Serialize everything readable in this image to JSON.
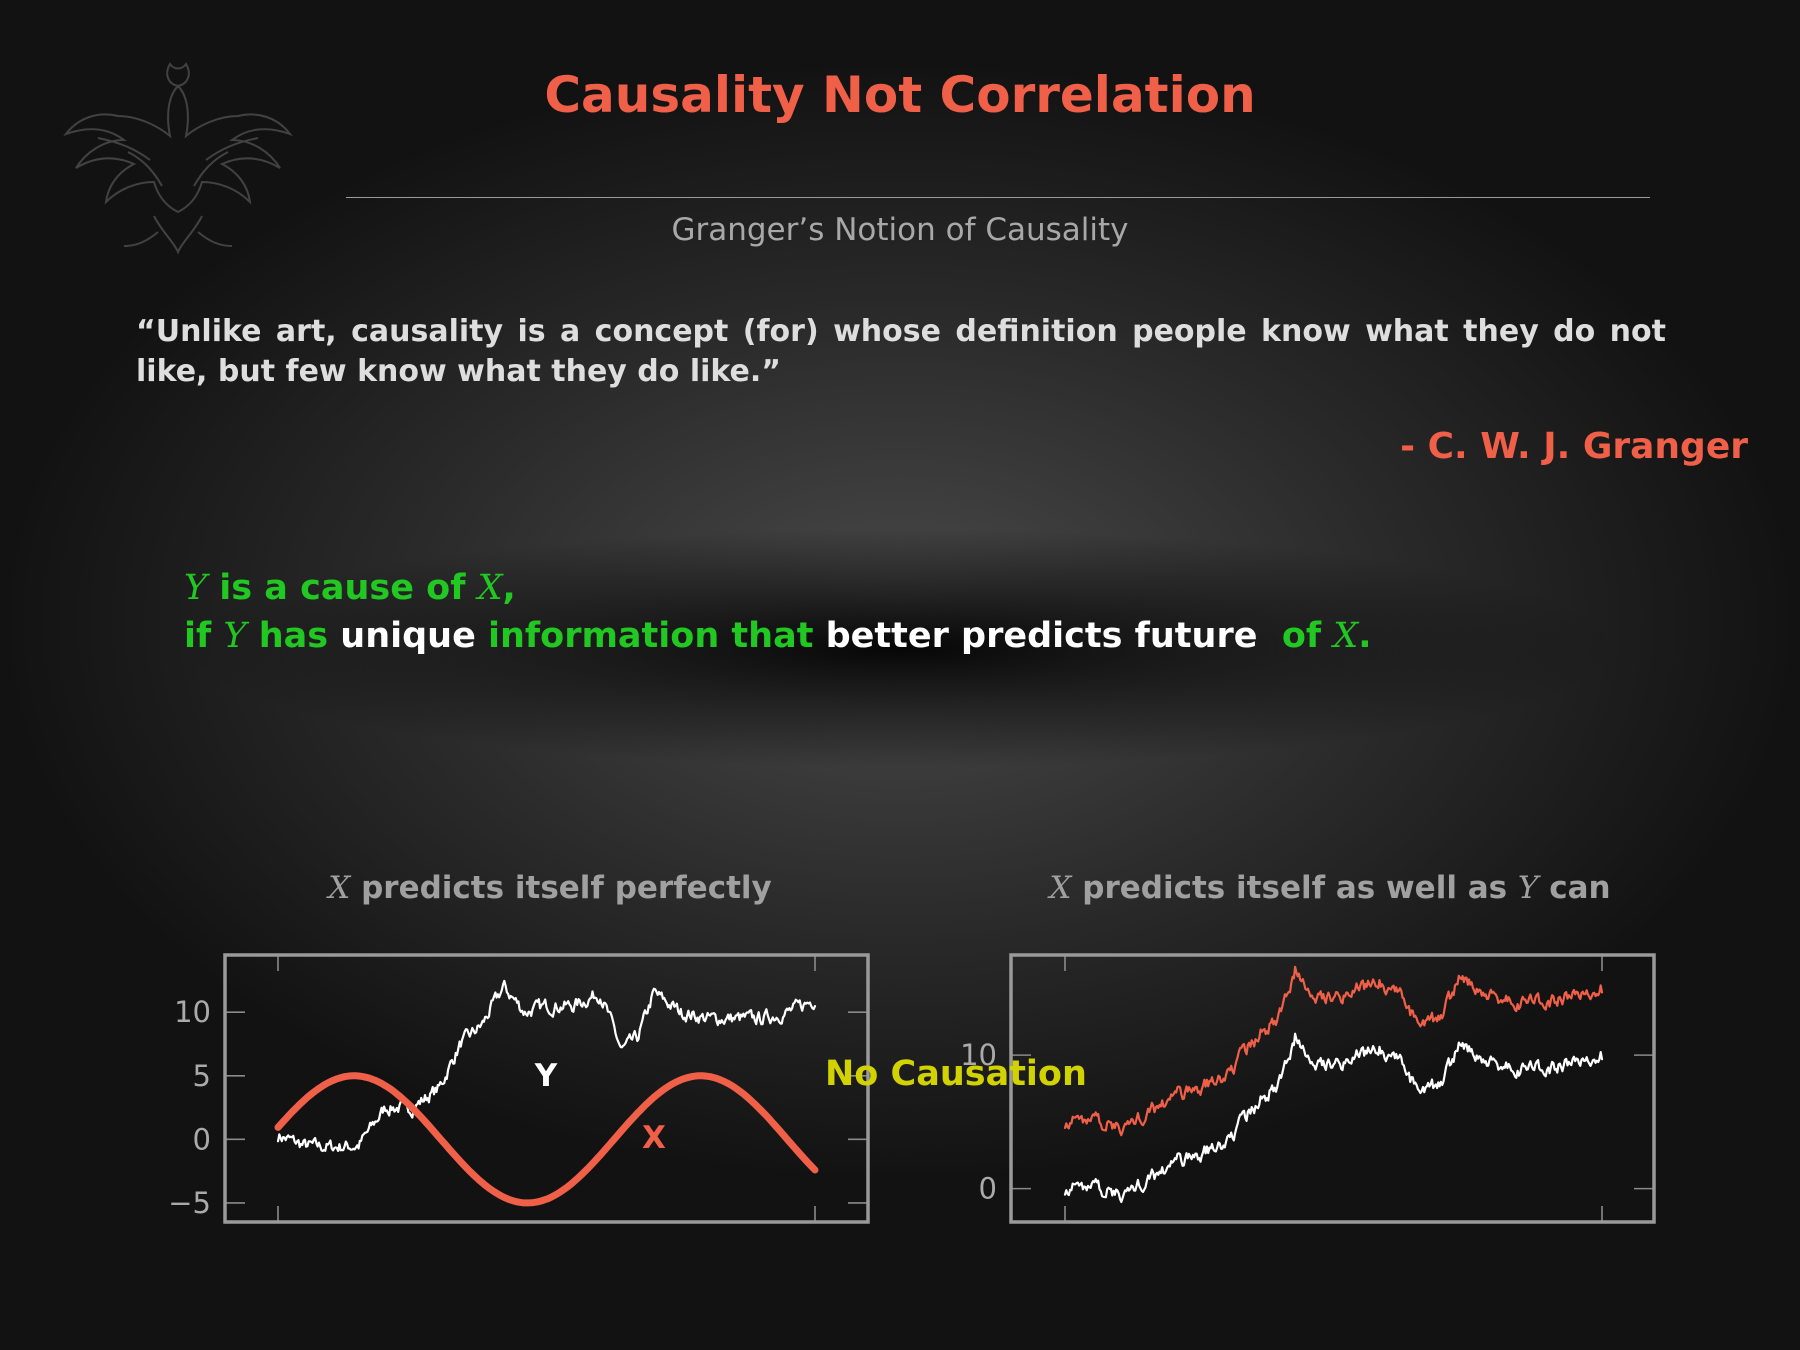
{
  "slide": {
    "title": "Causality Not Correlation",
    "subtitle": "Granger’s Notion of Causality",
    "quote": "“Unlike art, causality is a concept (for) whose definition people know what they do not like, but few know what they do like.”",
    "author": "- C. W. J. Granger",
    "definition": {
      "line1": {
        "var_y": "Y",
        "text1": "is a cause of",
        "var_x": "X",
        "punct": ","
      },
      "line2": {
        "if": "if",
        "var_y": "Y",
        "has": "has",
        "unique": "unique",
        "information_that": "information that",
        "better": "better predicts future",
        "of": "of",
        "var_x": "X",
        "end": "."
      }
    },
    "colors": {
      "title": "#f06048",
      "green": "#22c822",
      "yellow": "#d2d200",
      "series_x": "#f06048",
      "series_y": "#ffffff"
    },
    "logo": "phoenix-crest",
    "no_causation": "No Causation"
  },
  "chart_data": [
    {
      "type": "line",
      "caption_var": "X",
      "caption_text": "predicts itself perfectly",
      "ylim": [
        -6.5,
        14.5
      ],
      "yticks": [
        "10",
        "5",
        "0",
        "−5"
      ],
      "ytick_values": [
        10,
        5,
        0,
        -5
      ],
      "series": [
        {
          "name": "Y",
          "color": "#ffffff",
          "kind": "random-walk",
          "anchors": [
            [
              0,
              0.3
            ],
            [
              0.05,
              -0.5
            ],
            [
              0.1,
              -0.6
            ],
            [
              0.15,
              -0.5
            ],
            [
              0.2,
              2.5
            ],
            [
              0.25,
              2.5
            ],
            [
              0.3,
              4.0
            ],
            [
              0.34,
              7.5
            ],
            [
              0.38,
              9.0
            ],
            [
              0.42,
              12.0
            ],
            [
              0.46,
              10.0
            ],
            [
              0.5,
              10.5
            ],
            [
              0.55,
              10.5
            ],
            [
              0.6,
              11.5
            ],
            [
              0.64,
              7.0
            ],
            [
              0.67,
              8.0
            ],
            [
              0.7,
              11.5
            ],
            [
              0.75,
              10.0
            ],
            [
              0.8,
              9.5
            ],
            [
              0.85,
              9.5
            ],
            [
              0.9,
              9.5
            ],
            [
              0.95,
              10.0
            ],
            [
              1.0,
              11.0
            ]
          ]
        },
        {
          "name": "X",
          "color": "#f06048",
          "kind": "sine",
          "amplitude": 5,
          "periods": 1.55,
          "phase": 0.03
        }
      ],
      "labels": {
        "y": "Y",
        "x": "X"
      }
    },
    {
      "type": "line",
      "caption_var1": "X",
      "caption_text1": "predicts itself as well as",
      "caption_var2": "Y",
      "caption_text2": "can",
      "yticks": [
        "10",
        "0"
      ],
      "ytick_values": [
        10,
        0
      ],
      "ylim": [
        -2.5,
        17.5
      ],
      "series": [
        {
          "name": "X",
          "color": "#f06048",
          "kind": "random-walk-offset",
          "offset": 5
        },
        {
          "name": "Y",
          "color": "#ffffff",
          "kind": "random-walk",
          "anchors": [
            [
              0,
              0.0
            ],
            [
              0.05,
              0.3
            ],
            [
              0.1,
              -0.5
            ],
            [
              0.15,
              0.5
            ],
            [
              0.2,
              2.0
            ],
            [
              0.25,
              2.5
            ],
            [
              0.3,
              3.5
            ],
            [
              0.35,
              6.0
            ],
            [
              0.4,
              8.0
            ],
            [
              0.43,
              11.5
            ],
            [
              0.47,
              9.5
            ],
            [
              0.52,
              9.5
            ],
            [
              0.58,
              10.5
            ],
            [
              0.62,
              10.0
            ],
            [
              0.66,
              7.0
            ],
            [
              0.7,
              8.0
            ],
            [
              0.74,
              11.0
            ],
            [
              0.78,
              9.5
            ],
            [
              0.84,
              9.0
            ],
            [
              0.9,
              9.0
            ],
            [
              0.95,
              9.5
            ],
            [
              1.0,
              10.0
            ]
          ]
        }
      ]
    }
  ]
}
